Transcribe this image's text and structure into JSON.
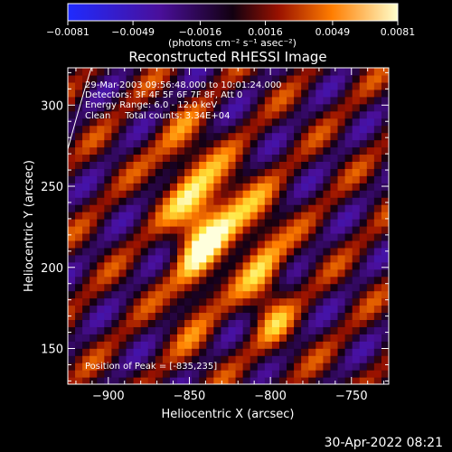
{
  "chart_data": {
    "type": "heatmap",
    "title": "Reconstructed RHESSI Image",
    "xlabel": "Heliocentric X (arcsec)",
    "ylabel": "Heliocentric Y (arcsec)",
    "xlim": [
      -925,
      -727
    ],
    "ylim": [
      128,
      323
    ],
    "xticks": [
      -900,
      -850,
      -800,
      -750
    ],
    "xtick_labels": [
      "−900",
      "−850",
      "−800",
      "−750"
    ],
    "yticks": [
      150,
      200,
      250,
      300
    ],
    "ytick_labels": [
      "150",
      "200",
      "250",
      "300"
    ],
    "colorbar": {
      "range": [
        -0.0081,
        0.0081
      ],
      "ticks": [
        -0.0081,
        -0.0049,
        -0.0016,
        0.0016,
        0.0049,
        0.0081
      ],
      "tick_labels": [
        "−0.0081",
        "−0.0049",
        "−0.0016",
        "0.0016",
        "0.0049",
        "0.0081"
      ],
      "label": "(photons cm⁻² s⁻¹ asec⁻²)"
    },
    "annotations": [
      "29-Mar-2003 09:56:48.000 to 10:01:24.000",
      "Detectors: 3F 4F 5F 6F 7F 8F, Att 0",
      "Energy Range: 6.0 - 12.0 keV",
      "Clean     Total counts: 3.34E+04"
    ],
    "peak_label": "Position of Peak = [-835,235]",
    "peak": [
      -835,
      235
    ]
  },
  "footer": {
    "timestamp": "30-Apr-2022 08:21"
  }
}
